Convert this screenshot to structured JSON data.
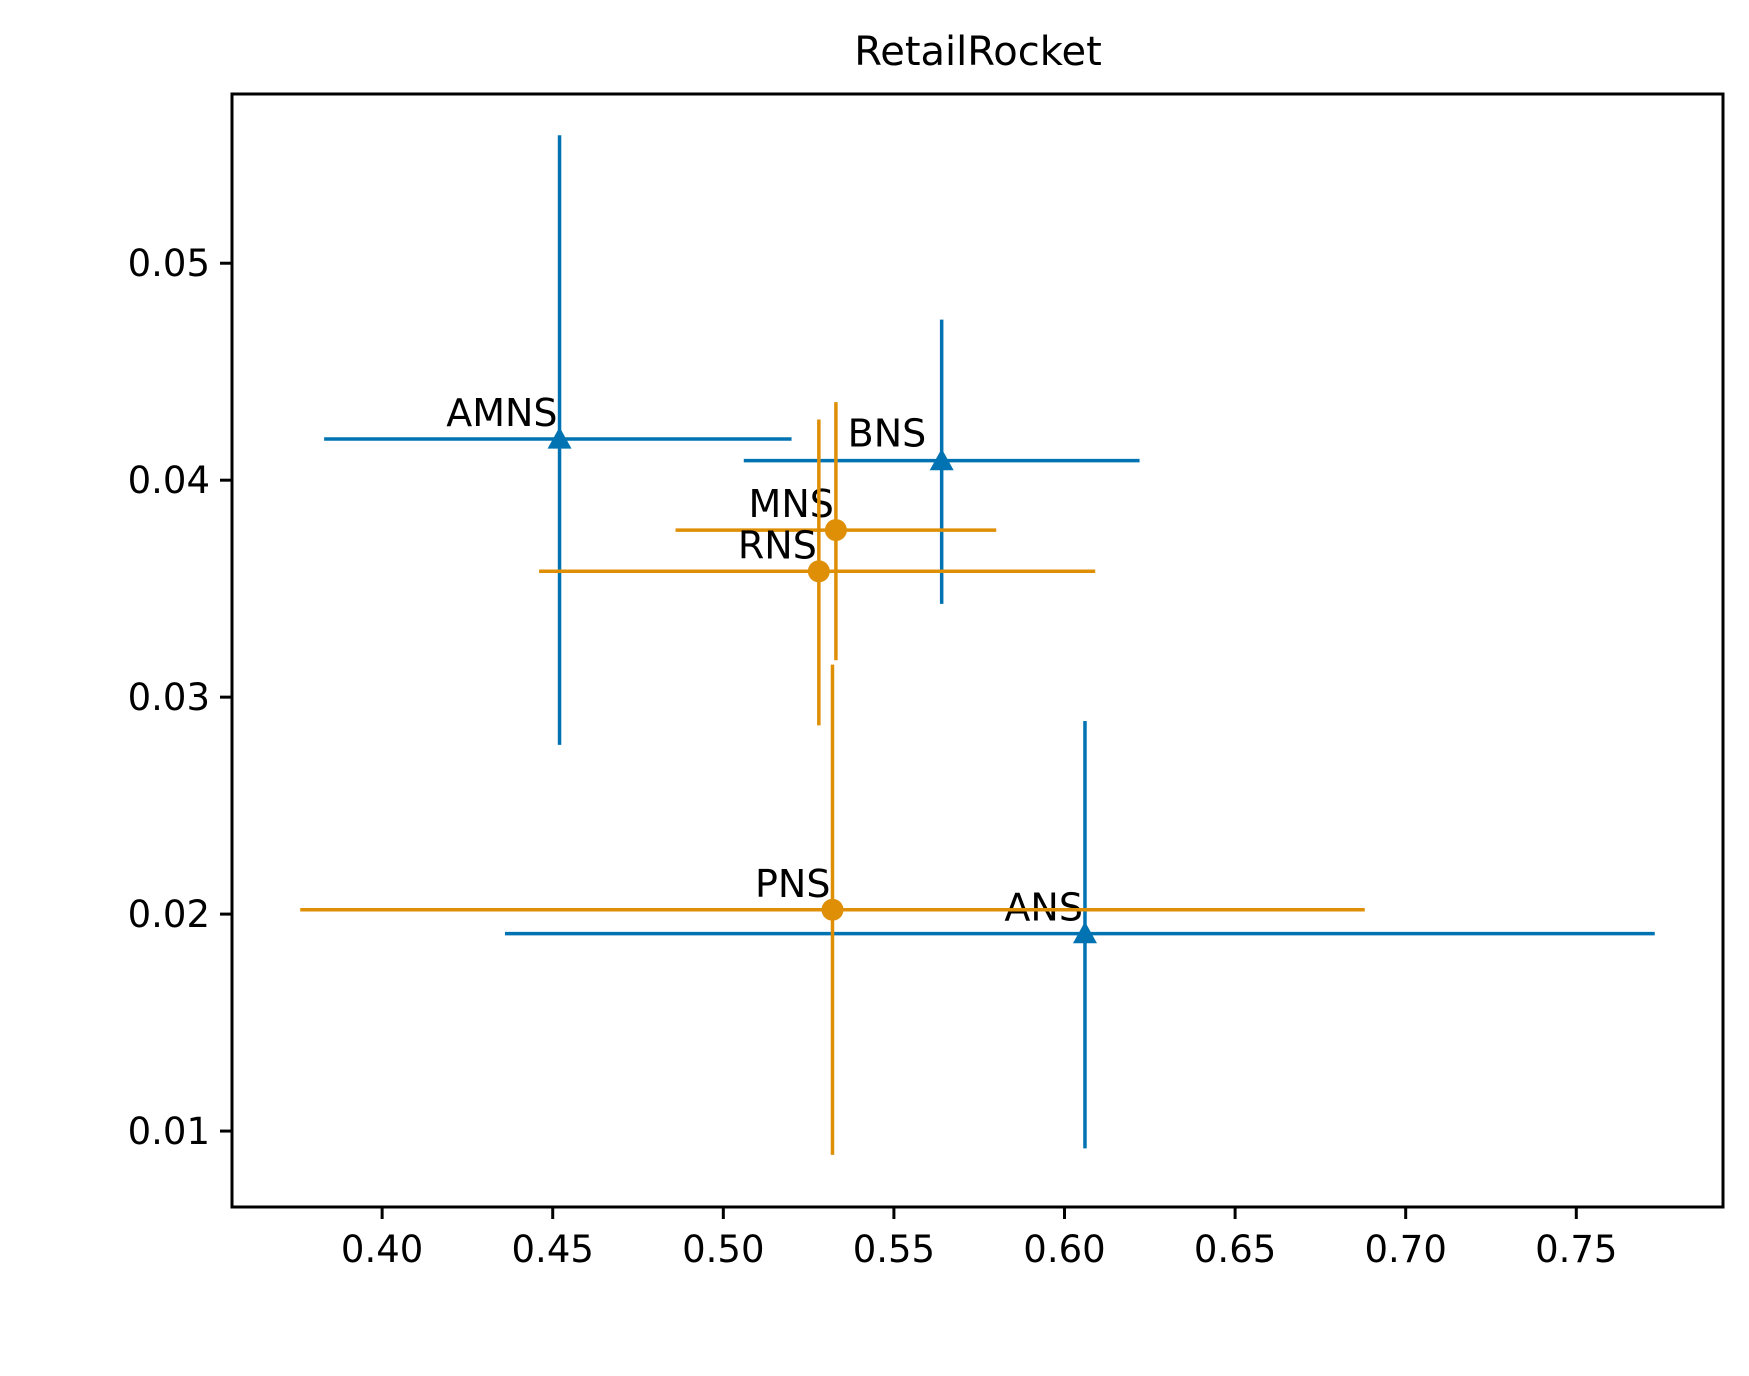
{
  "chart_data": {
    "type": "scatter",
    "title": "RetailRocket",
    "xlabel": "",
    "ylabel": "",
    "xlim": [
      0.356,
      0.793
    ],
    "ylim": [
      0.0065,
      0.0578
    ],
    "x_ticks": [
      0.4,
      0.45,
      0.5,
      0.55,
      0.6,
      0.65,
      0.7,
      0.75
    ],
    "x_tick_labels": [
      "0.40",
      "0.45",
      "0.50",
      "0.55",
      "0.60",
      "0.65",
      "0.70",
      "0.75"
    ],
    "y_ticks": [
      0.01,
      0.02,
      0.03,
      0.04,
      0.05
    ],
    "y_tick_labels": [
      "0.01",
      "0.02",
      "0.03",
      "0.04",
      "0.05"
    ],
    "grid": false,
    "legend": "none",
    "series": [
      {
        "marker": "triangle",
        "color": "#0173b2",
        "points": [
          {
            "label": "AMNS",
            "x": 0.452,
            "y": 0.0419,
            "x_err": [
              0.383,
              0.52
            ],
            "y_err": [
              0.0278,
              0.0559
            ],
            "label_side": "left"
          },
          {
            "label": "BNS",
            "x": 0.564,
            "y": 0.0409,
            "x_err": [
              0.506,
              0.622
            ],
            "y_err": [
              0.0343,
              0.0474
            ],
            "label_side": "above-right"
          },
          {
            "label": "ANS",
            "x": 0.606,
            "y": 0.0191,
            "x_err": [
              0.436,
              0.773
            ],
            "y_err": [
              0.0092,
              0.0289
            ],
            "label_side": "left"
          }
        ]
      },
      {
        "marker": "circle",
        "color": "#de8f05",
        "points": [
          {
            "label": "MNS",
            "x": 0.533,
            "y": 0.0377,
            "x_err": [
              0.486,
              0.58
            ],
            "y_err": [
              0.0317,
              0.0436
            ],
            "label_side": "left"
          },
          {
            "label": "RNS",
            "x": 0.528,
            "y": 0.0358,
            "x_err": [
              0.446,
              0.609
            ],
            "y_err": [
              0.0287,
              0.0428
            ],
            "label_side": "left"
          },
          {
            "label": "PNS",
            "x": 0.532,
            "y": 0.0202,
            "x_err": [
              0.376,
              0.688
            ],
            "y_err": [
              0.0089,
              0.0315
            ],
            "label_side": "left"
          }
        ]
      }
    ]
  }
}
